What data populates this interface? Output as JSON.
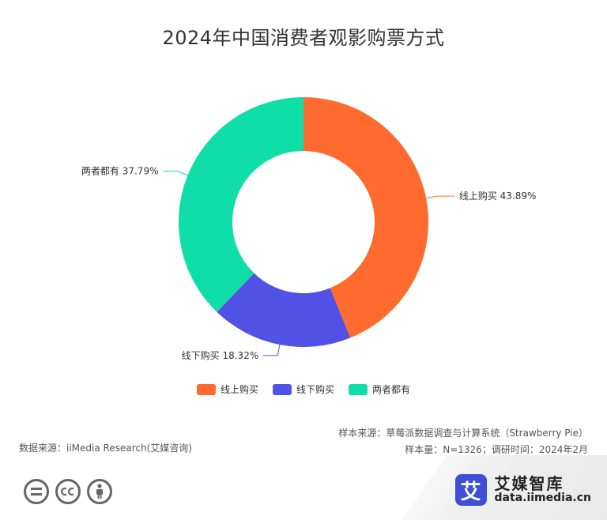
{
  "chart_data": {
    "type": "pie",
    "title": "2024年中国消费者观影购票方式",
    "slices": [
      {
        "label": "线上购买",
        "value": 43.89,
        "color": "#ff6b2e",
        "display": "线上购买 43.89%"
      },
      {
        "label": "线下购买",
        "value": 18.32,
        "color": "#5151e5",
        "display": "线下购买 18.32%"
      },
      {
        "label": "两者都有",
        "value": 37.79,
        "color": "#10dea9",
        "display": "两者都有 37.79%"
      }
    ],
    "legend_placement": "bottom",
    "donut": true
  },
  "footer": {
    "source": "数据来源：iiMedia Research(艾媒咨询)",
    "sample_source": "样本来源：草莓派数据调查与计算系统（Strawberry Pie）",
    "sample_info": "样本量：N=1326；调研时间：2024年2月"
  },
  "brand": {
    "logo_char": "艾",
    "name": "艾媒智库",
    "url": "data.iimedia.cn"
  },
  "icons": [
    "equal-icon",
    "cc-icon",
    "person-icon"
  ]
}
